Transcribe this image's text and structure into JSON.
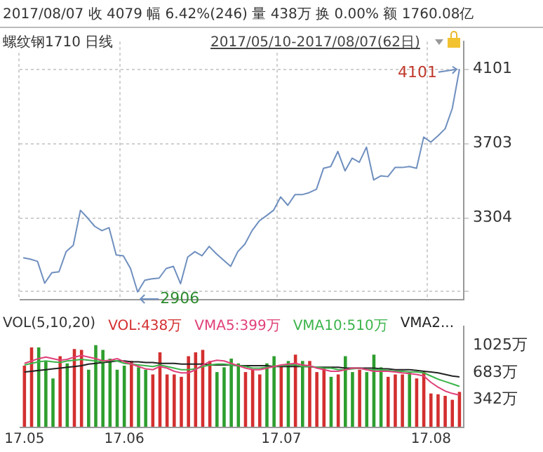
{
  "chart_data": [
    {
      "type": "line",
      "title": "2017/08/07 收 4079 幅 6.42%(246) 量 438万 换 0.00% 额 1760.08亿",
      "subtitle": "螺纹钢1710 日线",
      "annotations": [
        "2017/05/10-2017/08/07(62日)",
        "4101",
        "2906"
      ],
      "categories": [
        "17.05",
        null,
        null,
        null,
        null,
        null,
        null,
        null,
        null,
        null,
        null,
        null,
        null,
        null,
        "17.06",
        null,
        null,
        null,
        null,
        null,
        null,
        null,
        null,
        null,
        null,
        null,
        null,
        null,
        null,
        null,
        null,
        null,
        null,
        null,
        null,
        null,
        "17.07",
        null,
        null,
        null,
        null,
        null,
        null,
        null,
        null,
        null,
        null,
        null,
        null,
        null,
        null,
        null,
        null,
        null,
        null,
        null,
        null,
        "17.08",
        null,
        null,
        null,
        null
      ],
      "series": [
        {
          "color": "#6f8fbf",
          "values": [
            3089,
            3082,
            3070,
            2953,
            3009,
            3014,
            3122,
            3156,
            3344,
            3303,
            3258,
            3235,
            3251,
            3104,
            3100,
            3032,
            2906,
            2969,
            2976,
            2980,
            3032,
            3043,
            2950,
            3093,
            3122,
            3100,
            3150,
            3111,
            3077,
            3043,
            3122,
            3163,
            3235,
            3287,
            3315,
            3344,
            3416,
            3371,
            3428,
            3428,
            3439,
            3457,
            3570,
            3579,
            3660,
            3556,
            3624,
            3602,
            3683,
            3507,
            3529,
            3525,
            3574,
            3574,
            3579,
            3570,
            3737,
            3710,
            3744,
            3782,
            3891,
            4101
          ]
        }
      ],
      "ylim": [
        2865,
        4250
      ],
      "yticks": [
        4101,
        3703,
        3304,
        {
          "value": 2906,
          "label": null
        }
      ],
      "grid": true,
      "tick_labels": "y"
    },
    {
      "type": "bar",
      "legend_title": "VOL(5,10,20)",
      "legend": "top",
      "categories": [
        "17.05",
        null,
        null,
        null,
        null,
        null,
        null,
        null,
        null,
        null,
        null,
        null,
        null,
        null,
        "17.06",
        null,
        null,
        null,
        null,
        null,
        null,
        null,
        null,
        null,
        null,
        null,
        null,
        null,
        null,
        null,
        null,
        null,
        null,
        null,
        null,
        null,
        "17.07",
        null,
        null,
        null,
        null,
        null,
        null,
        null,
        null,
        null,
        null,
        null,
        null,
        null,
        null,
        null,
        null,
        null,
        null,
        null,
        null,
        "17.08",
        null,
        null,
        null,
        null
      ],
      "series": [
        {
          "name": "VOL:438万",
          "color": "#d32f2f",
          "colors": [
            "#d32f2f",
            "#d32f2f",
            "#2e9e2e",
            "#2e9e2e",
            "#2e9e2e",
            "#d32f2f",
            "#2e9e2e",
            "#d32f2f",
            "#d32f2f",
            "#2e9e2e",
            "#2e9e2e",
            "#2e9e2e",
            "#2e9e2e",
            "#2e9e2e",
            "#2e9e2e",
            "#d32f2f",
            "#2e9e2e",
            "#2e9e2e",
            "#d32f2f",
            "#d32f2f",
            "#d32f2f",
            "#d32f2f",
            "#d32f2f",
            "#d32f2f",
            "#d32f2f",
            "#d32f2f",
            "#d32f2f",
            "#2e9e2e",
            "#2e9e2e",
            "#2e9e2e",
            "#2e9e2e",
            "#d32f2f",
            "#d32f2f",
            "#d32f2f",
            "#2e9e2e",
            "#2e9e2e",
            "#d32f2f",
            "#2e9e2e",
            "#d32f2f",
            "#2e9e2e",
            "#d32f2f",
            "#d32f2f",
            "#d32f2f",
            "#2e9e2e",
            "#d32f2f",
            "#2e9e2e",
            "#2e9e2e",
            "#d32f2f",
            "#2e9e2e",
            "#2e9e2e",
            "#2e9e2e",
            "#d32f2f",
            "#d32f2f",
            "#d32f2f",
            "#2e9e2e",
            "#d32f2f",
            "#d32f2f",
            "#d32f2f",
            "#d32f2f",
            "#d32f2f",
            "#d32f2f",
            "#d32f2f"
          ],
          "values": [
            770,
            1000,
            1000,
            830,
            610,
            890,
            800,
            980,
            970,
            720,
            1030,
            970,
            860,
            720,
            770,
            830,
            750,
            720,
            660,
            940,
            660,
            660,
            630,
            890,
            940,
            970,
            830,
            690,
            750,
            860,
            800,
            690,
            720,
            660,
            800,
            890,
            770,
            830,
            910,
            830,
            830,
            690,
            750,
            630,
            660,
            890,
            690,
            720,
            690,
            910,
            750,
            630,
            660,
            660,
            690,
            610,
            690,
            420,
            410,
            390,
            340,
            440
          ]
        },
        {
          "type": "line",
          "name": "VMA5:399万",
          "color": "#e0407a",
          "values": [
            800,
            830,
            860,
            880,
            860,
            840,
            850,
            880,
            900,
            880,
            860,
            830,
            840,
            860,
            820,
            790,
            760,
            730,
            720,
            760,
            740,
            700,
            680,
            680,
            720,
            780,
            820,
            840,
            830,
            800,
            770,
            740,
            720,
            720,
            740,
            760,
            780,
            790,
            800,
            780,
            770,
            740,
            720,
            700,
            700,
            720,
            740,
            740,
            720,
            700,
            700,
            700,
            690,
            680,
            670,
            660,
            640,
            560,
            500,
            450,
            420,
            399
          ]
        },
        {
          "type": "line",
          "name": "VMA10:510万",
          "color": "#3cb44b",
          "values": [
            780,
            800,
            820,
            830,
            820,
            810,
            830,
            840,
            850,
            840,
            830,
            820,
            840,
            830,
            800,
            790,
            780,
            770,
            760,
            780,
            760,
            740,
            720,
            720,
            730,
            760,
            780,
            790,
            790,
            780,
            770,
            760,
            740,
            740,
            750,
            760,
            770,
            780,
            780,
            760,
            760,
            750,
            740,
            740,
            720,
            720,
            730,
            740,
            720,
            720,
            720,
            710,
            700,
            700,
            690,
            690,
            680,
            640,
            600,
            570,
            540,
            510
          ]
        },
        {
          "type": "line",
          "name": "VMA2...",
          "color": "#222222",
          "values": [
            690,
            700,
            710,
            720,
            730,
            740,
            750,
            760,
            770,
            790,
            800,
            810,
            820,
            830,
            830,
            820,
            820,
            810,
            810,
            800,
            800,
            800,
            790,
            790,
            790,
            790,
            780,
            780,
            780,
            780,
            770,
            770,
            770,
            770,
            770,
            760,
            760,
            760,
            760,
            760,
            760,
            750,
            750,
            750,
            750,
            740,
            740,
            740,
            740,
            740,
            730,
            730,
            720,
            720,
            720,
            710,
            700,
            690,
            680,
            660,
            640,
            630
          ]
        }
      ],
      "ylim": [
        0,
        1265
      ],
      "yticks": [
        {
          "value": 1025,
          "label": "1025万"
        },
        {
          "value": 683,
          "label": "683万"
        },
        {
          "value": 342,
          "label": "342万"
        }
      ]
    }
  ]
}
